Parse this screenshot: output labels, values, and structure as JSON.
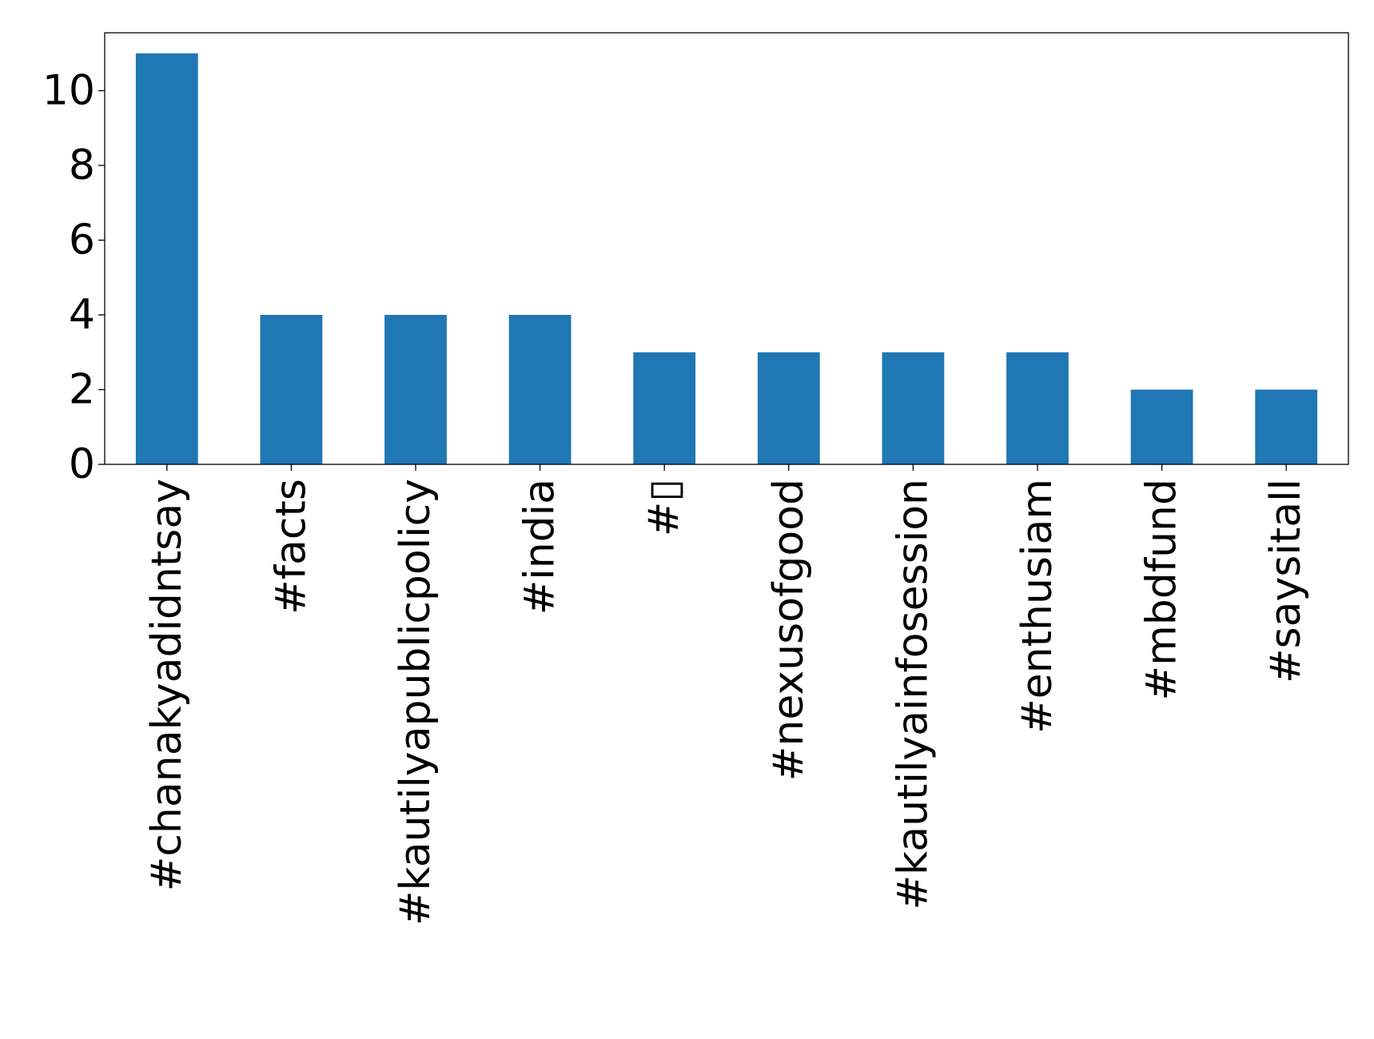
{
  "chart_data": {
    "type": "bar",
    "title": "",
    "xlabel": "",
    "ylabel": "",
    "categories": [
      "#chanakyadidntsay",
      "#facts",
      "#kautilyapublicpolicy",
      "#india",
      "#▯",
      "#nexusofgood",
      "#kautilyainfosession",
      "#enthusiam",
      "#mbdfund",
      "#saysitall"
    ],
    "values": [
      11,
      4,
      4,
      4,
      3,
      3,
      3,
      3,
      2,
      2
    ],
    "ylim": [
      0,
      11.55
    ],
    "yticks": [
      0,
      2,
      4,
      6,
      8,
      10
    ],
    "grid": false,
    "legend": "none",
    "bar_color": "#1f77b4"
  }
}
